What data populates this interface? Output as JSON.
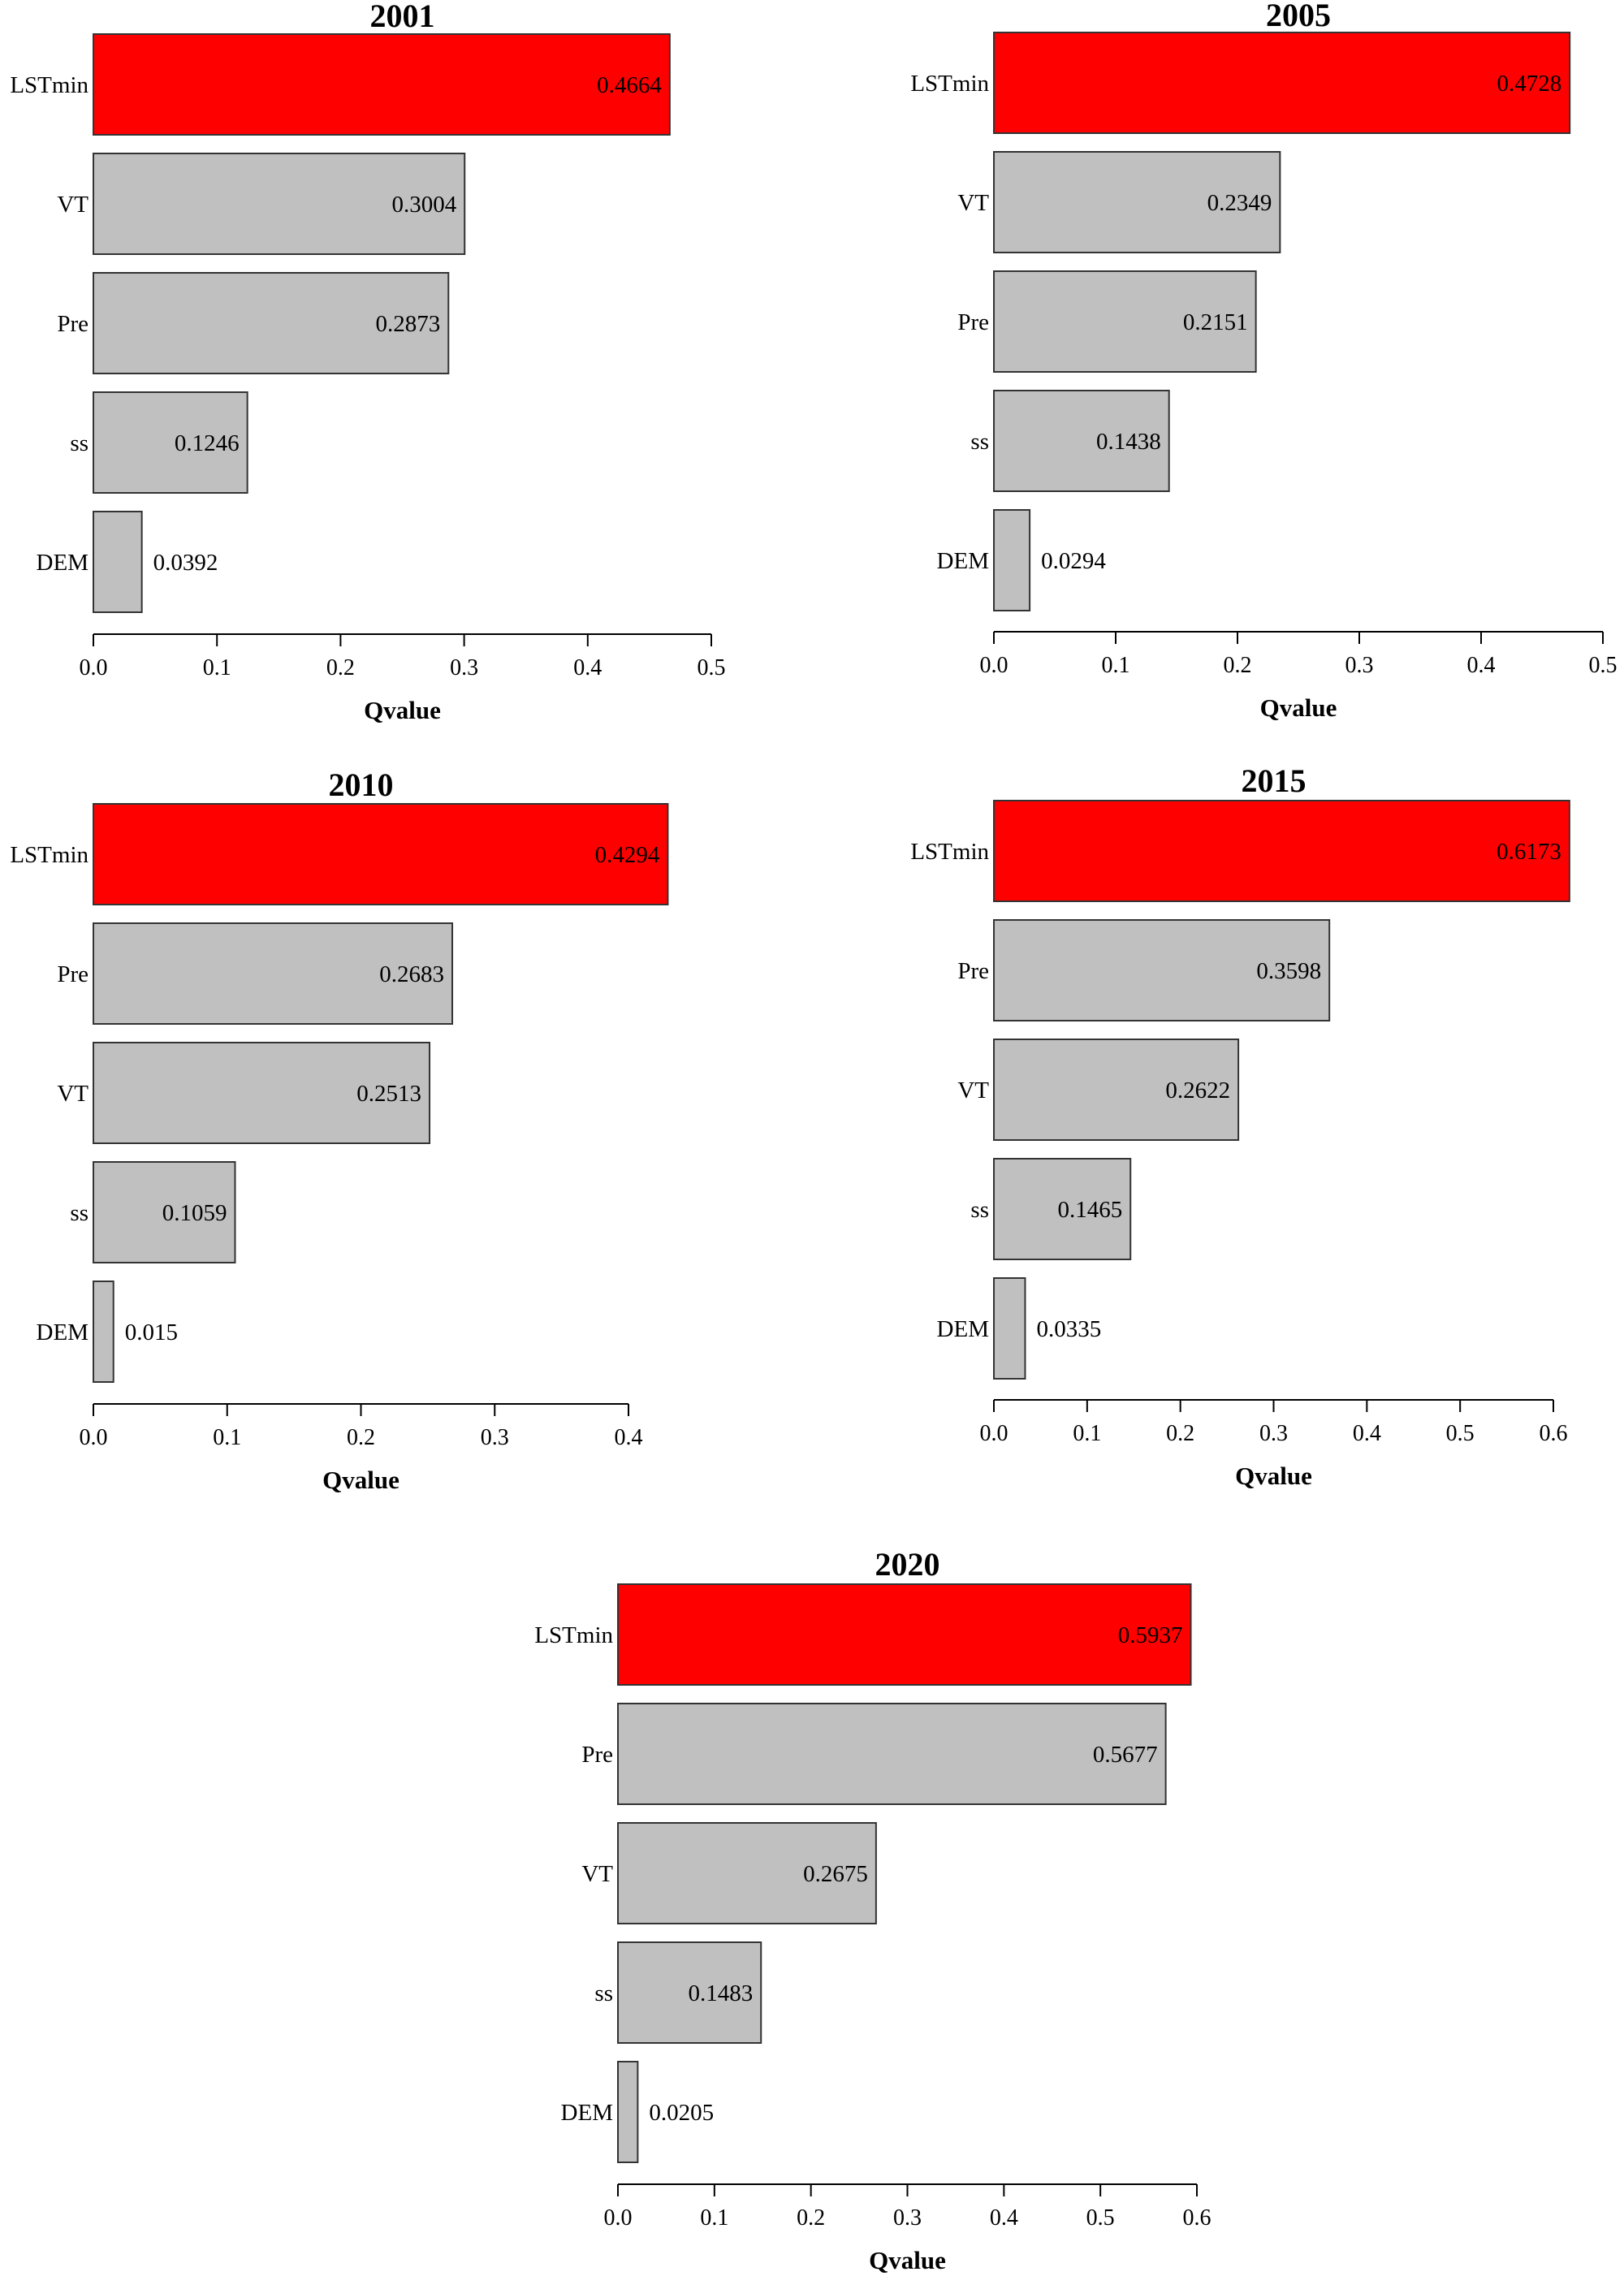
{
  "chart_data": [
    {
      "type": "bar",
      "orientation": "horizontal",
      "title": "2001",
      "categories": [
        "LSTmin",
        "VT",
        "Pre",
        "ss",
        "DEM"
      ],
      "values": [
        0.4664,
        0.3004,
        0.2873,
        0.1246,
        0.0392
      ],
      "value_labels": [
        "0.4664",
        "0.3004",
        "0.2873",
        "0.1246",
        "0.0392"
      ],
      "highlight_index": 0,
      "xlabel": "Qvalue",
      "xlim": [
        0,
        0.5
      ],
      "ticks": [
        0,
        0.1,
        0.2,
        0.3,
        0.4,
        0.5
      ],
      "tick_labels": [
        "0.0",
        "0.1",
        "0.2",
        "0.3",
        "0.4",
        "0.5"
      ],
      "grid": false
    },
    {
      "type": "bar",
      "orientation": "horizontal",
      "title": "2005",
      "categories": [
        "LSTmin",
        "VT",
        "Pre",
        "ss",
        "DEM"
      ],
      "values": [
        0.4728,
        0.2349,
        0.2151,
        0.1438,
        0.0294
      ],
      "value_labels": [
        "0.4728",
        "0.2349",
        "0.2151",
        "0.1438",
        "0.0294"
      ],
      "highlight_index": 0,
      "xlabel": "Qvalue",
      "xlim": [
        0,
        0.5
      ],
      "ticks": [
        0,
        0.1,
        0.2,
        0.3,
        0.4,
        0.5
      ],
      "tick_labels": [
        "0.0",
        "0.1",
        "0.2",
        "0.3",
        "0.4",
        "0.5"
      ],
      "grid": false
    },
    {
      "type": "bar",
      "orientation": "horizontal",
      "title": "2010",
      "categories": [
        "LSTmin",
        "Pre",
        "VT",
        "ss",
        "DEM"
      ],
      "values": [
        0.4294,
        0.2683,
        0.2513,
        0.1059,
        0.015
      ],
      "value_labels": [
        "0.4294",
        "0.2683",
        "0.2513",
        "0.1059",
        "0.015"
      ],
      "highlight_index": 0,
      "xlabel": "Qvalue",
      "xlim": [
        0,
        0.4
      ],
      "ticks": [
        0,
        0.1,
        0.2,
        0.3,
        0.4
      ],
      "tick_labels": [
        "0.0",
        "0.1",
        "0.2",
        "0.3",
        "0.4"
      ],
      "grid": false
    },
    {
      "type": "bar",
      "orientation": "horizontal",
      "title": "2015",
      "categories": [
        "LSTmin",
        "Pre",
        "VT",
        "ss",
        "DEM"
      ],
      "values": [
        0.6173,
        0.3598,
        0.2622,
        0.1465,
        0.0335
      ],
      "value_labels": [
        "0.6173",
        "0.3598",
        "0.2622",
        "0.1465",
        "0.0335"
      ],
      "highlight_index": 0,
      "xlabel": "Qvalue",
      "xlim": [
        0,
        0.6
      ],
      "ticks": [
        0,
        0.1,
        0.2,
        0.3,
        0.4,
        0.5,
        0.6
      ],
      "tick_labels": [
        "0.0",
        "0.1",
        "0.2",
        "0.3",
        "0.4",
        "0.5",
        "0.6"
      ],
      "grid": false
    },
    {
      "type": "bar",
      "orientation": "horizontal",
      "title": "2020",
      "categories": [
        "LSTmin",
        "Pre",
        "VT",
        "ss",
        "DEM"
      ],
      "values": [
        0.5937,
        0.5677,
        0.2675,
        0.1483,
        0.0205
      ],
      "value_labels": [
        "0.5937",
        "0.5677",
        "0.2675",
        "0.1483",
        "0.0205"
      ],
      "highlight_index": 0,
      "xlabel": "Qvalue",
      "xlim": [
        0,
        0.6
      ],
      "ticks": [
        0,
        0.1,
        0.2,
        0.3,
        0.4,
        0.5,
        0.6
      ],
      "tick_labels": [
        "0.0",
        "0.1",
        "0.2",
        "0.3",
        "0.4",
        "0.5",
        "0.6"
      ],
      "grid": false
    }
  ],
  "colors": {
    "highlight_bar": "#ff0000",
    "bar": "#c0c0c0",
    "bar_stroke": "#333333",
    "axis": "#000000"
  }
}
